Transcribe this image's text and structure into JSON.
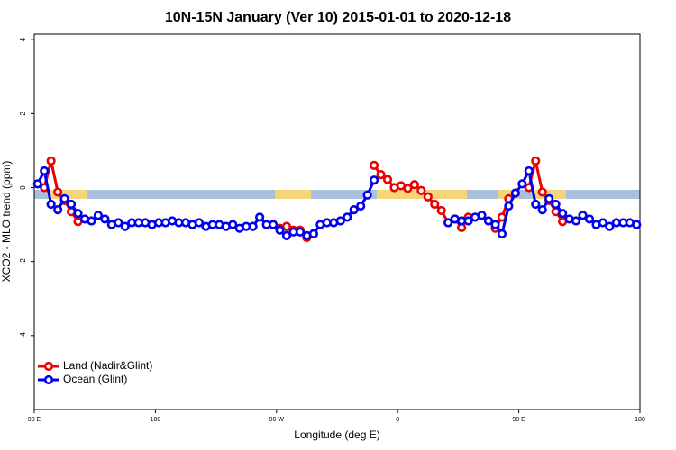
{
  "chart_data": {
    "type": "line",
    "title": "10N-15N January (Ver 10)   2015-01-01 to 2020-12-18",
    "x_label": "Longitude (deg E)",
    "y_label": "XCO2 - MLO trend (ppm)",
    "xlim": [
      90,
      540
    ],
    "ylim": [
      -6,
      4.15
    ],
    "xticks": [
      {
        "value": 90,
        "label": "90 E"
      },
      180,
      {
        "value": 270,
        "label": "90 W"
      },
      {
        "value": 360,
        "label": "0"
      },
      {
        "value": 450,
        "label": "90 E"
      },
      {
        "value": 540,
        "label": "180"
      }
    ],
    "yticks": [
      4,
      2,
      0,
      -2,
      -4
    ],
    "grid": false,
    "legend": "bottomleft",
    "x": [
      92.5,
      97.5,
      102.5,
      107.5,
      112.5,
      117.5,
      122.5,
      127.5,
      132.5,
      137.5,
      142.5,
      147.5,
      152.5,
      157.5,
      162.5,
      167.5,
      172.5,
      177.5,
      182.5,
      187.5,
      192.5,
      197.5,
      202.5,
      207.5,
      212.5,
      217.5,
      222.5,
      227.5,
      232.5,
      237.5,
      242.5,
      247.5,
      252.5,
      257.5,
      262.5,
      267.5,
      272.5,
      277.5,
      282.5,
      287.5,
      292.5,
      297.5,
      302.5,
      307.5,
      312.5,
      317.5,
      322.5,
      327.5,
      332.5,
      337.5,
      342.5,
      347.5,
      352.5,
      357.5,
      362.5,
      367.5,
      372.5,
      377.5,
      382.5,
      387.5,
      392.5,
      397.5,
      402.5,
      407.5,
      412.5,
      417.5,
      422.5,
      427.5,
      432.5,
      437.5,
      442.5,
      447.5,
      452.5,
      457.5,
      462.5,
      467.5,
      472.5,
      477.5,
      482.5,
      487.5,
      492.5,
      497.5,
      502.5,
      507.5,
      512.5,
      517.5,
      522.5,
      527.5,
      532.5,
      537.5
    ],
    "series": [
      {
        "name": "Land (Nadir&Glint)",
        "color": "#ee0000",
        "values": [
          null,
          0.0,
          0.72,
          -0.12,
          -0.35,
          -0.65,
          -0.92,
          null,
          null,
          null,
          null,
          null,
          null,
          null,
          null,
          null,
          null,
          null,
          null,
          null,
          null,
          null,
          null,
          null,
          null,
          null,
          null,
          null,
          null,
          null,
          null,
          null,
          null,
          null,
          null,
          -1.0,
          -1.1,
          -1.05,
          -1.15,
          -1.15,
          -1.35,
          -1.25,
          null,
          null,
          null,
          null,
          null,
          null,
          null,
          null,
          0.6,
          0.35,
          0.22,
          0.0,
          0.05,
          -0.02,
          0.08,
          -0.08,
          -0.25,
          -0.45,
          -0.62,
          -0.95,
          -0.85,
          -1.08,
          -0.8,
          null,
          null,
          null,
          -1.1,
          -0.8,
          -0.3,
          null,
          null,
          0.0,
          0.72,
          -0.12,
          -0.35,
          -0.65,
          -0.92,
          null,
          null,
          null,
          null,
          null,
          null,
          null,
          null,
          null,
          null,
          null
        ]
      },
      {
        "name": "Ocean (Glint)",
        "color": "#0000ee",
        "values": [
          0.1,
          0.45,
          -0.45,
          -0.6,
          -0.3,
          -0.45,
          -0.7,
          -0.85,
          -0.9,
          -0.75,
          -0.85,
          -1.0,
          -0.95,
          -1.05,
          -0.95,
          -0.95,
          -0.95,
          -1.0,
          -0.95,
          -0.95,
          -0.9,
          -0.95,
          -0.95,
          -1.0,
          -0.95,
          -1.05,
          -1.0,
          -1.0,
          -1.05,
          -1.0,
          -1.1,
          -1.05,
          -1.05,
          -0.8,
          -1.0,
          -1.0,
          -1.15,
          -1.3,
          -1.2,
          -1.2,
          -1.3,
          -1.25,
          -1.0,
          -0.95,
          -0.95,
          -0.9,
          -0.8,
          -0.6,
          -0.5,
          -0.2,
          0.2,
          null,
          null,
          null,
          null,
          null,
          null,
          null,
          null,
          null,
          null,
          -0.95,
          -0.85,
          -0.9,
          -0.9,
          -0.8,
          -0.75,
          -0.9,
          -1.0,
          -1.25,
          -0.5,
          -0.15,
          0.1,
          0.45,
          -0.45,
          -0.6,
          -0.3,
          -0.45,
          -0.7,
          -0.85,
          -0.9,
          -0.75,
          -0.85,
          -1.0,
          -0.95,
          -1.05,
          -0.95,
          -0.95,
          -0.95,
          -1.0
        ]
      }
    ]
  }
}
